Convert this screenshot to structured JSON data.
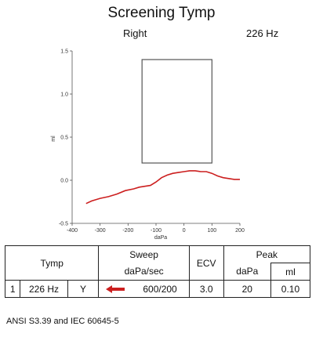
{
  "header": {
    "title": "Screening Tymp",
    "ear": "Right",
    "frequency": "226 Hz"
  },
  "chart_data": {
    "type": "line",
    "xlabel": "daPa",
    "ylabel": "ml",
    "xlim": [
      -400,
      200
    ],
    "ylim": [
      -0.5,
      1.5
    ],
    "xticks": [
      "-400",
      "-300",
      "-200",
      "-100",
      "0",
      "100",
      "200"
    ],
    "yticks": [
      "1.5",
      "1.0",
      "0.5",
      "0.0",
      "-0.5"
    ],
    "normative_box": {
      "x": [
        -150,
        100
      ],
      "y": [
        0.2,
        1.4
      ]
    },
    "series": [
      {
        "color": "#cc1f1f",
        "x": [
          -350,
          -330,
          -300,
          -270,
          -240,
          -210,
          -180,
          -160,
          -140,
          -120,
          -100,
          -80,
          -60,
          -40,
          -20,
          0,
          20,
          40,
          60,
          80,
          100,
          120,
          140,
          160,
          180,
          200
        ],
        "y": [
          -0.27,
          -0.24,
          -0.21,
          -0.19,
          -0.16,
          -0.12,
          -0.1,
          -0.08,
          -0.07,
          -0.06,
          -0.02,
          0.03,
          0.06,
          0.08,
          0.09,
          0.1,
          0.11,
          0.11,
          0.1,
          0.1,
          0.08,
          0.05,
          0.03,
          0.02,
          0.01,
          0.01
        ]
      }
    ]
  },
  "table": {
    "header": {
      "tymp": "Tymp",
      "sweep": "Sweep",
      "sweep_unit": "daPa/sec",
      "ecv": "ECV",
      "peak": "Peak",
      "peak_dapa": "daPa",
      "peak_ml": "ml"
    },
    "row": {
      "index": "1",
      "frequency": "226 Hz",
      "type": "Y",
      "direction_icon": "arrow-left-icon",
      "arrow_color": "#cc1f1f",
      "sweep_rate": "600/200",
      "ecv": "3.0",
      "peak_dapa": "20",
      "peak_ml": "0.10"
    }
  },
  "footer": {
    "standards": "ANSI S3.39 and IEC 60645-5"
  }
}
